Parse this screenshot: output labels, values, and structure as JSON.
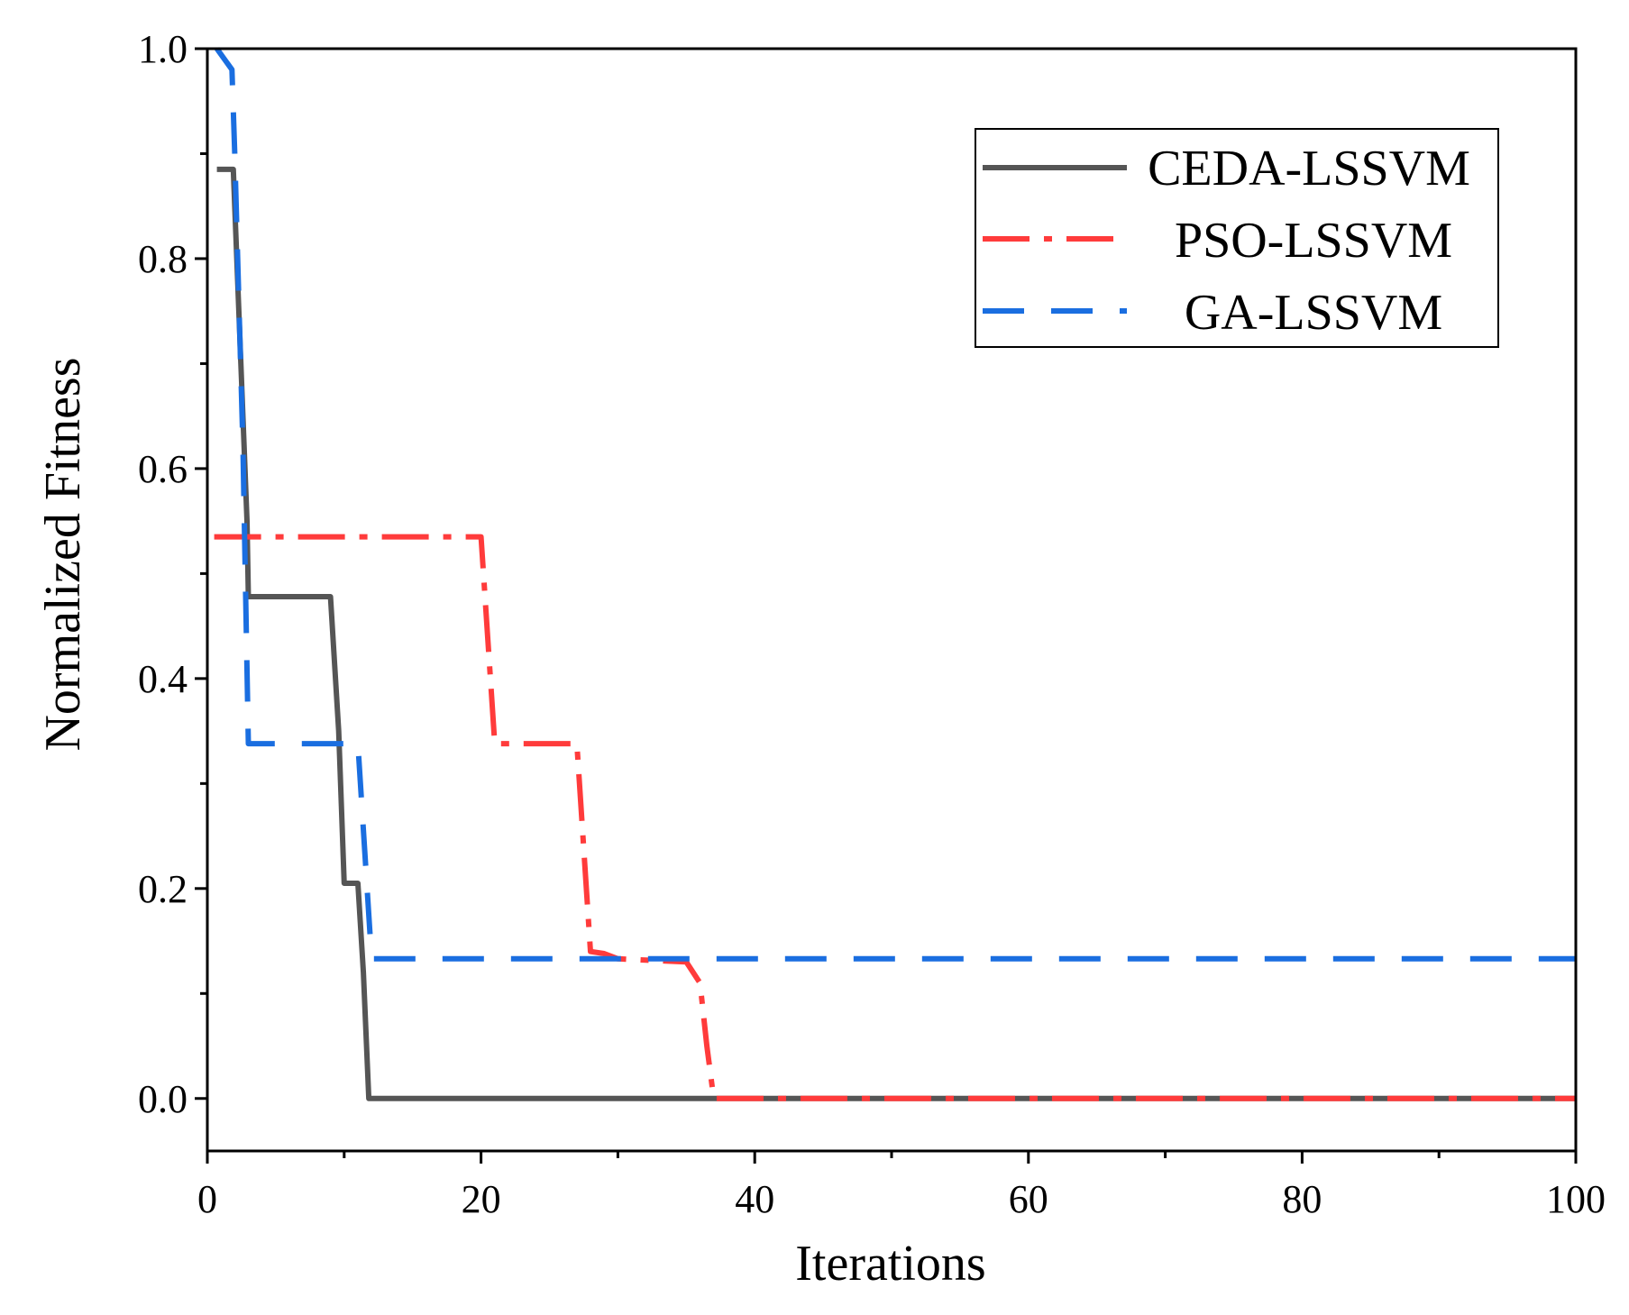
{
  "chart_data": {
    "type": "line",
    "title": "",
    "xlabel": "Iterations",
    "ylabel": "Normalized Fitness",
    "xlim": [
      0,
      100
    ],
    "ylim": [
      -0.05,
      1.0
    ],
    "x_ticks": [
      0,
      20,
      40,
      60,
      80,
      100
    ],
    "x_tick_labels": [
      "0",
      "20",
      "40",
      "60",
      "80",
      "100"
    ],
    "x_minor_ticks": [
      10,
      30,
      50,
      70,
      90
    ],
    "y_ticks": [
      0.0,
      0.2,
      0.4,
      0.6,
      0.8,
      1.0
    ],
    "y_tick_labels": [
      "0.0",
      "0.2",
      "0.4",
      "0.6",
      "0.8",
      "1.0"
    ],
    "y_minor_ticks": [
      0.1,
      0.3,
      0.5,
      0.7,
      0.9
    ],
    "grid": false,
    "legend_position": "top-right",
    "series": [
      {
        "name": "CEDA-LSSVM",
        "color": "#555555",
        "line_style": "solid",
        "x": [
          0.7,
          1.9,
          2.9,
          3.0,
          9.0,
          9.6,
          10.0,
          11.0,
          11.4,
          11.8,
          100
        ],
        "y": [
          0.885,
          0.885,
          0.55,
          0.478,
          0.478,
          0.35,
          0.205,
          0.205,
          0.12,
          0.0,
          0.0
        ]
      },
      {
        "name": "PSO-LSSVM",
        "color": "#ff3b3b",
        "line_style": "dash-dot",
        "x": [
          0.5,
          20.0,
          21.0,
          27.0,
          28.0,
          29.0,
          30.0,
          35.0,
          36.0,
          36.5,
          37.0,
          100
        ],
        "y": [
          0.535,
          0.535,
          0.338,
          0.338,
          0.14,
          0.138,
          0.133,
          0.13,
          0.11,
          0.05,
          0.0,
          0.0
        ]
      },
      {
        "name": "GA-LSSVM",
        "color": "#1a6ee0",
        "line_style": "dashed",
        "x": [
          0.7,
          1.8,
          2.0,
          2.6,
          3.0,
          9.0,
          11.0,
          12.0,
          13.0,
          100
        ],
        "y": [
          1.0,
          0.98,
          0.9,
          0.62,
          0.338,
          0.338,
          0.338,
          0.133,
          0.133,
          0.133
        ]
      }
    ]
  },
  "legend": {
    "items": [
      {
        "label": "CEDA-LSSVM"
      },
      {
        "label": "PSO-LSSVM"
      },
      {
        "label": "GA-LSSVM"
      }
    ]
  }
}
